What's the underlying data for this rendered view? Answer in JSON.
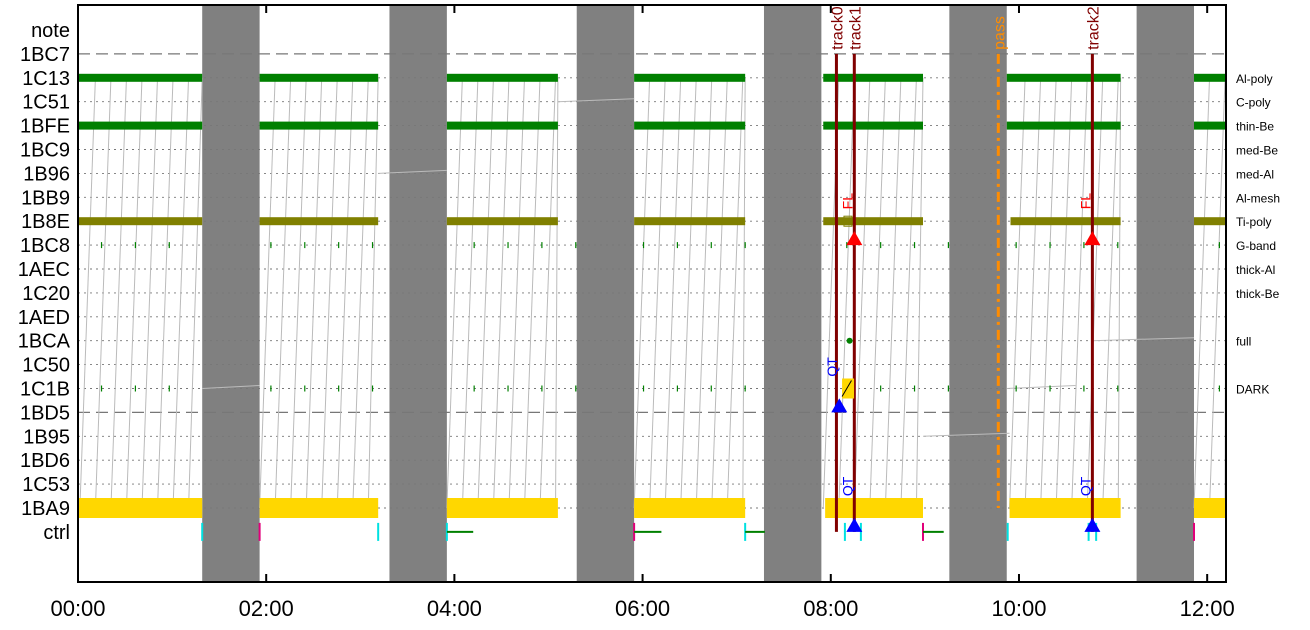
{
  "chart_data": {
    "type": "timeline",
    "x_ticks": [
      "00:00",
      "02:00",
      "04:00",
      "06:00",
      "08:00",
      "10:00",
      "12:00"
    ],
    "xlim": [
      0,
      12.2
    ],
    "rows": [
      "note",
      "1BC7",
      "1C13",
      "1C51",
      "1BFE",
      "1BC9",
      "1B96",
      "1BB9",
      "1B8E",
      "1BC8",
      "1AEC",
      "1C20",
      "1AED",
      "1BCA",
      "1C50",
      "1C1B",
      "1BD5",
      "1B95",
      "1BD6",
      "1C53",
      "1BA9",
      "ctrl"
    ],
    "row_styles": [
      "none",
      "dashed",
      "dotted",
      "dotted",
      "dotted",
      "dotted",
      "dotted",
      "dotted",
      "dotted",
      "dotted",
      "dotted",
      "dotted",
      "dotted",
      "dotted",
      "dotted",
      "dotted",
      "dashed",
      "dotted",
      "dotted",
      "dotted",
      "dotted",
      "none"
    ],
    "right_labels": [
      {
        "row": "1C13",
        "text": "Al-poly"
      },
      {
        "row": "1C51",
        "text": "C-poly"
      },
      {
        "row": "1BFE",
        "text": "thin-Be"
      },
      {
        "row": "1BC9",
        "text": "med-Be"
      },
      {
        "row": "1B96",
        "text": "med-Al"
      },
      {
        "row": "1BB9",
        "text": "Al-mesh"
      },
      {
        "row": "1B8E",
        "text": "Ti-poly"
      },
      {
        "row": "1BC8",
        "text": "G-band"
      },
      {
        "row": "1AEC",
        "text": "thick-Al"
      },
      {
        "row": "1C20",
        "text": "thick-Be"
      },
      {
        "row": "1BCA",
        "text": "full"
      },
      {
        "row": "1C1B",
        "text": "DARK"
      }
    ],
    "night_bands": [
      [
        1.32,
        1.93
      ],
      [
        3.31,
        3.92
      ],
      [
        5.3,
        5.91
      ],
      [
        7.29,
        7.9
      ],
      [
        9.26,
        9.87
      ],
      [
        11.25,
        11.86
      ]
    ],
    "obs_bars": [
      {
        "row": "1C13",
        "color": "#008000",
        "segments": [
          [
            0,
            1.32
          ],
          [
            1.93,
            3.19
          ],
          [
            3.92,
            5.1
          ],
          [
            5.91,
            7.09
          ],
          [
            9.87,
            11.08
          ],
          [
            11.86,
            12.2
          ]
        ]
      },
      {
        "row": "1BFE",
        "color": "#008000",
        "segments": [
          [
            0,
            1.32
          ],
          [
            1.93,
            3.19
          ],
          [
            3.92,
            5.1
          ],
          [
            5.91,
            7.09
          ],
          [
            9.87,
            11.08
          ],
          [
            11.86,
            12.2
          ]
        ]
      },
      {
        "row": "1B8E",
        "color": "#808000",
        "segments": [
          [
            0,
            1.32
          ],
          [
            1.93,
            3.19
          ],
          [
            3.92,
            5.1
          ],
          [
            5.91,
            7.09
          ],
          [
            7.92,
            8.98
          ],
          [
            9.91,
            11.08
          ],
          [
            11.86,
            12.2
          ]
        ]
      },
      {
        "row": "1BA9",
        "color": "#ffd700",
        "segments": [
          [
            0,
            1.32
          ],
          [
            1.93,
            3.19
          ],
          [
            3.92,
            5.1
          ],
          [
            5.91,
            7.09
          ],
          [
            7.94,
            8.98
          ],
          [
            9.9,
            11.08
          ],
          [
            11.86,
            12.2
          ]
        ]
      },
      {
        "row": "1C13",
        "color": "#008000",
        "segments": [
          [
            7.92,
            8.98
          ]
        ]
      },
      {
        "row": "1BFE",
        "color": "#008000",
        "segments": [
          [
            7.92,
            8.98
          ]
        ]
      }
    ],
    "events": [
      {
        "label": "track0",
        "x": 8.06,
        "color": "#800000",
        "style": "solid",
        "from": "note",
        "to": "ctrl"
      },
      {
        "label": "track1",
        "x": 8.25,
        "color": "#800000",
        "style": "solid",
        "from": "note",
        "to": "ctrl"
      },
      {
        "label": "pass",
        "x": 9.78,
        "color": "#ff8c00",
        "style": "dashdot",
        "from": "note",
        "to": "1BA9"
      },
      {
        "label": "track2",
        "x": 10.78,
        "color": "#800000",
        "style": "solid",
        "from": "note",
        "to": "ctrl"
      }
    ],
    "markers": [
      {
        "label": "FL",
        "x": 8.25,
        "row": "1BC8",
        "color": "#ff0000",
        "text_row": "1BB9"
      },
      {
        "label": "FL",
        "x": 10.78,
        "row": "1BC8",
        "color": "#ff0000",
        "text_row": "1BB9"
      },
      {
        "label": "QT",
        "x": 8.09,
        "row": "1BD5",
        "color": "#0000ff",
        "text_row": "1C50"
      },
      {
        "label": "QT",
        "x": 8.25,
        "row": "ctrl",
        "color": "#0000ff",
        "text_row": "1C53"
      },
      {
        "label": "QT",
        "x": 10.78,
        "row": "ctrl",
        "color": "#0000ff",
        "text_row": "1C53"
      }
    ]
  }
}
